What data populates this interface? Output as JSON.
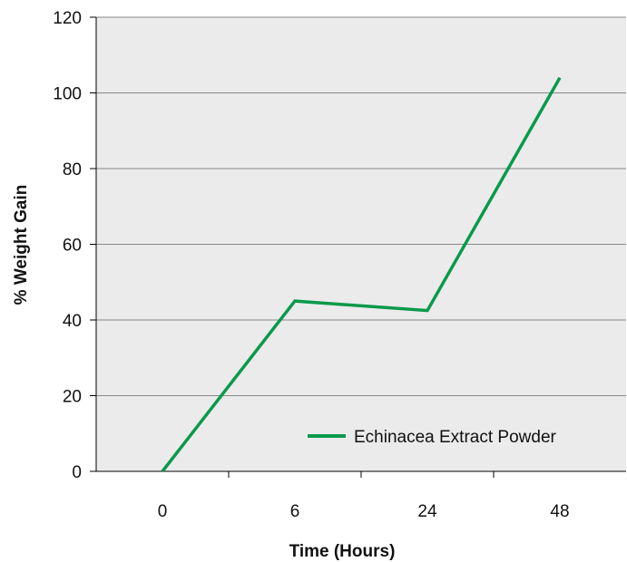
{
  "chart_data": {
    "type": "line",
    "categories": [
      "0",
      "6",
      "24",
      "48"
    ],
    "series": [
      {
        "name": "Echinacea Extract Powder",
        "values": [
          0,
          45,
          42.5,
          104
        ]
      }
    ],
    "title": "",
    "xlabel": "Time (Hours)",
    "ylabel": "% Weight Gain",
    "ylim": [
      0,
      120
    ],
    "yticks": [
      0,
      20,
      40,
      60,
      80,
      100,
      120
    ],
    "grid": "horizontal",
    "legend_position": "bottom-right",
    "colors": {
      "plot_background": "#ebebeb",
      "series": "#0a9a4a",
      "grid": "#888888"
    }
  }
}
